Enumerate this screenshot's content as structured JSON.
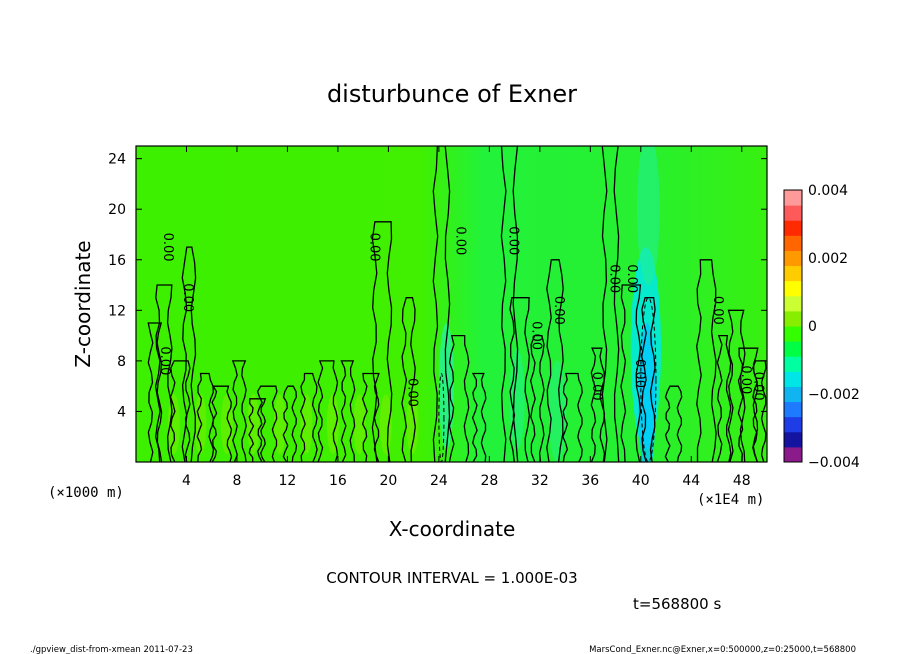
{
  "chart_data": {
    "type": "heatmap",
    "title": "disturbunce of Exner",
    "xlabel": "X-coordinate",
    "ylabel": "Z-coordinate",
    "x_unit_left": "(×1000 m)",
    "x_unit_right": "(×1E4 m)",
    "xlim": [
      0,
      50
    ],
    "ylim": [
      0,
      25
    ],
    "x_ticks": [
      "4",
      "8",
      "12",
      "16",
      "20",
      "24",
      "28",
      "32",
      "36",
      "40",
      "44",
      "48"
    ],
    "y_ticks": [
      "4",
      "8",
      "12",
      "16",
      "20",
      "24"
    ],
    "colorbar": {
      "min": -0.004,
      "max": 0.004,
      "tick_labels": [
        "0.004",
        "0.002",
        "0",
        "−0.002",
        "−0.004"
      ],
      "colors": [
        "#8b1a8b",
        "#1414a0",
        "#1f3de6",
        "#1e7bff",
        "#0fb4f0",
        "#00e5e5",
        "#00ffa0",
        "#00ff44",
        "#33ff00",
        "#88ee00",
        "#ccff33",
        "#ffff00",
        "#ffcc00",
        "#ff9900",
        "#ff6600",
        "#ff2a00",
        "#ff5a5a",
        "#ff9a9a"
      ]
    },
    "contour_interval": "CONTOUR INTERVAL = 1.000E-03",
    "contour_label": "0.00",
    "contour_columns_x": [
      1.5,
      2.2,
      3.5,
      4.2,
      5.5,
      6.8,
      8.2,
      9.6,
      10.4,
      12.2,
      13.7,
      15.2,
      16.8,
      18.6,
      19.5,
      21.6,
      24.2,
      25.6,
      27.2,
      29.6,
      30.4,
      31.8,
      33.2,
      34.6,
      36.6,
      37.6,
      39.2,
      40.6,
      42.6,
      45.2,
      46.6,
      47.6,
      48.5,
      49.4
    ],
    "contour_heights": [
      11,
      14,
      8,
      17,
      7,
      6,
      8,
      5,
      6,
      6,
      7,
      8,
      8,
      7,
      19,
      13,
      25,
      10,
      7,
      25,
      13,
      10,
      16,
      7,
      9,
      25,
      14,
      13,
      6,
      16,
      10,
      12,
      9,
      8
    ],
    "time_label": "t=568800 s"
  },
  "footer": {
    "left": "./gpview_dist-from-xmean  2011-07-23",
    "right": "MarsCond_Exner.nc@Exner,x=0:500000,z=0:25000,t=568800"
  }
}
